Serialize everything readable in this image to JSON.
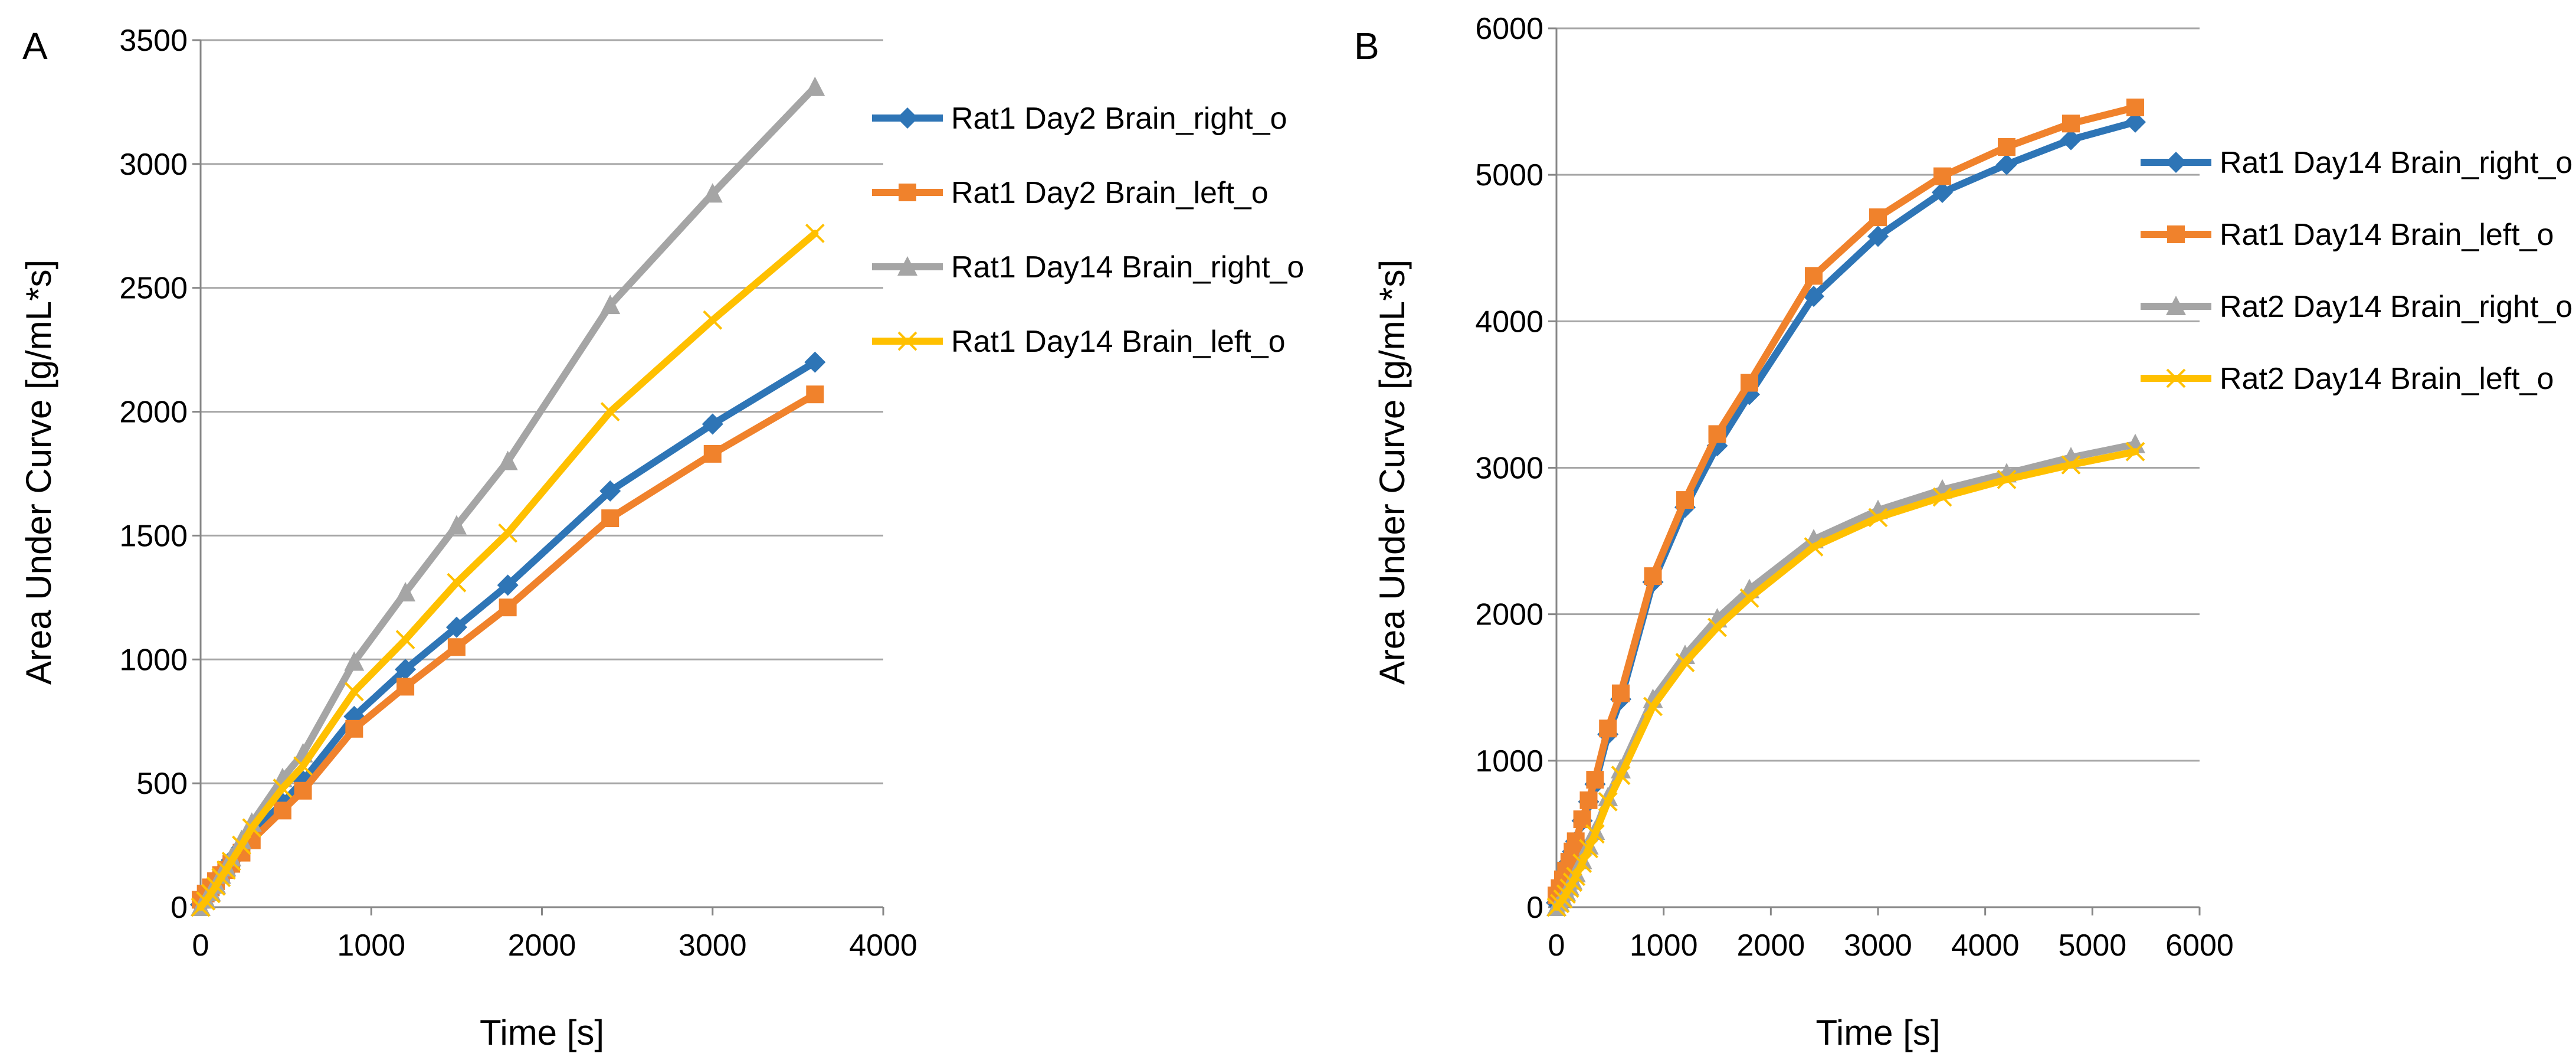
{
  "chart_data": [
    {
      "type": "line",
      "panel": "A",
      "xlabel": "Time [s]",
      "ylabel": "Area Under Curve [g/mL*s]",
      "xlim": [
        0,
        4000
      ],
      "ylim": [
        0,
        3500
      ],
      "xticks": [
        0,
        1000,
        2000,
        3000,
        4000
      ],
      "yticks": [
        0,
        500,
        1000,
        1500,
        2000,
        2500,
        3000,
        3500
      ],
      "x_tick_labels": [
        "0",
        "1000",
        "2000",
        "3000",
        "4000"
      ],
      "y_tick_labels": [
        "0",
        "500",
        "1000",
        "1500",
        "2000",
        "2500",
        "3000",
        "3500"
      ],
      "legend_position": "right",
      "series": [
        {
          "name": "Rat1 Day2 Brain_right_o",
          "color": "#2e75b6",
          "marker": "diamond",
          "x": [
            0,
            30,
            60,
            90,
            120,
            150,
            180,
            240,
            300,
            480,
            600,
            900,
            1200,
            1500,
            1800,
            2400,
            3000,
            3600
          ],
          "y": [
            10,
            40,
            70,
            100,
            130,
            160,
            190,
            240,
            300,
            420,
            510,
            770,
            960,
            1130,
            1300,
            1680,
            1950,
            2200
          ]
        },
        {
          "name": "Rat1 Day2 Brain_left_o",
          "color": "#f0822c",
          "marker": "square",
          "x": [
            0,
            30,
            60,
            90,
            120,
            150,
            180,
            240,
            300,
            480,
            600,
            900,
            1200,
            1500,
            1800,
            2400,
            3000,
            3600
          ],
          "y": [
            30,
            55,
            80,
            105,
            130,
            150,
            175,
            220,
            270,
            390,
            470,
            720,
            890,
            1050,
            1210,
            1570,
            1830,
            2070
          ]
        },
        {
          "name": "Rat1 Day14 Brain_right_o",
          "color": "#a5a5a5",
          "marker": "triangle",
          "x": [
            0,
            30,
            60,
            90,
            120,
            150,
            180,
            240,
            300,
            480,
            600,
            900,
            1200,
            1500,
            1800,
            2400,
            3000,
            3600
          ],
          "y": [
            0,
            30,
            60,
            90,
            130,
            160,
            200,
            270,
            340,
            520,
            620,
            990,
            1270,
            1540,
            1800,
            2430,
            2880,
            3310
          ]
        },
        {
          "name": "Rat1 Day14 Brain_left_o",
          "color": "#ffc000",
          "marker": "x",
          "x": [
            0,
            30,
            60,
            90,
            120,
            150,
            180,
            240,
            300,
            480,
            600,
            900,
            1200,
            1500,
            1800,
            2400,
            3000,
            3600
          ],
          "y": [
            0,
            25,
            55,
            85,
            120,
            150,
            185,
            250,
            320,
            480,
            570,
            870,
            1080,
            1310,
            1510,
            2000,
            2370,
            2720
          ]
        }
      ]
    },
    {
      "type": "line",
      "panel": "B",
      "xlabel": "Time [s]",
      "ylabel": "Area Under Curve [g/mL*s]",
      "xlim": [
        0,
        6000
      ],
      "ylim": [
        0,
        6000
      ],
      "xticks": [
        0,
        1000,
        2000,
        3000,
        4000,
        5000,
        6000
      ],
      "yticks": [
        0,
        1000,
        2000,
        3000,
        4000,
        5000,
        6000
      ],
      "x_tick_labels": [
        "0",
        "1000",
        "2000",
        "3000",
        "4000",
        "5000",
        "6000"
      ],
      "y_tick_labels": [
        "0",
        "1000",
        "2000",
        "3000",
        "4000",
        "5000",
        "6000"
      ],
      "legend_position": "right",
      "series": [
        {
          "name": "Rat1 Day14 Brain_right_o",
          "color": "#2e75b6",
          "marker": "diamond",
          "x": [
            0,
            30,
            60,
            90,
            120,
            150,
            180,
            240,
            300,
            360,
            480,
            600,
            900,
            1200,
            1500,
            1800,
            2400,
            3000,
            3600,
            4200,
            4800,
            5400
          ],
          "y": [
            30,
            100,
            170,
            240,
            310,
            380,
            450,
            590,
            720,
            840,
            1180,
            1420,
            2220,
            2730,
            3150,
            3500,
            4170,
            4580,
            4880,
            5070,
            5240,
            5360
          ]
        },
        {
          "name": "Rat1 Day14 Brain_left_o",
          "color": "#f0822c",
          "marker": "square",
          "x": [
            0,
            30,
            60,
            90,
            120,
            150,
            180,
            240,
            300,
            360,
            480,
            600,
            900,
            1200,
            1500,
            1800,
            2400,
            3000,
            3600,
            4200,
            4800,
            5400
          ],
          "y": [
            80,
            130,
            190,
            250,
            310,
            380,
            450,
            600,
            730,
            870,
            1220,
            1460,
            2260,
            2780,
            3230,
            3580,
            4310,
            4710,
            4990,
            5190,
            5350,
            5460
          ]
        },
        {
          "name": "Rat2 Day14 Brain_right_o",
          "color": "#a5a5a5",
          "marker": "triangle",
          "x": [
            0,
            30,
            60,
            90,
            120,
            150,
            180,
            240,
            300,
            360,
            480,
            600,
            900,
            1200,
            1500,
            1800,
            2400,
            3000,
            3600,
            4200,
            4800,
            5400
          ],
          "y": [
            0,
            30,
            60,
            100,
            140,
            180,
            230,
            320,
            420,
            520,
            750,
            940,
            1420,
            1720,
            1970,
            2170,
            2510,
            2710,
            2850,
            2960,
            3070,
            3160
          ]
        },
        {
          "name": "Rat2 Day14 Brain_left_o",
          "color": "#ffc000",
          "marker": "x",
          "x": [
            0,
            30,
            60,
            90,
            120,
            150,
            180,
            240,
            300,
            360,
            480,
            600,
            900,
            1200,
            1500,
            1800,
            2400,
            3000,
            3600,
            4200,
            4800,
            5400
          ],
          "y": [
            0,
            25,
            55,
            90,
            130,
            170,
            210,
            300,
            400,
            500,
            720,
            900,
            1370,
            1670,
            1910,
            2110,
            2460,
            2660,
            2800,
            2920,
            3020,
            3110
          ]
        }
      ]
    }
  ]
}
